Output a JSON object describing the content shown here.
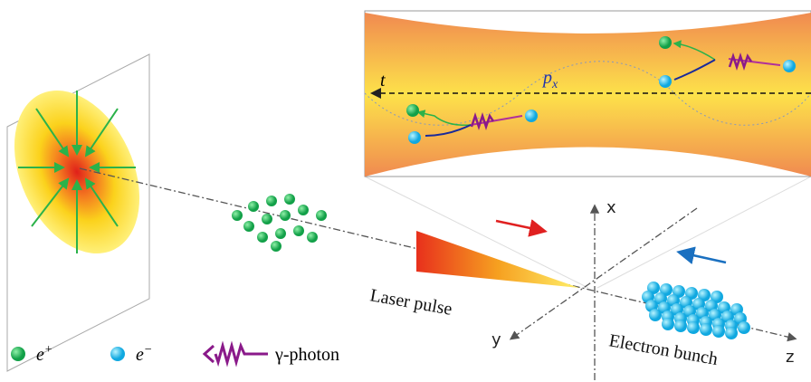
{
  "inset": {
    "time_label": "t",
    "momentum_label": "p",
    "momentum_subscript": "x"
  },
  "axes": {
    "x": "x",
    "y": "y",
    "z": "z"
  },
  "labels": {
    "laser_pulse": "Laser pulse",
    "electron_bunch": "Electron bunch"
  },
  "legend": [
    {
      "symbol": "e",
      "superscript": "+"
    },
    {
      "symbol": "e",
      "superscript": "−"
    },
    {
      "label": "γ-photon"
    }
  ]
}
